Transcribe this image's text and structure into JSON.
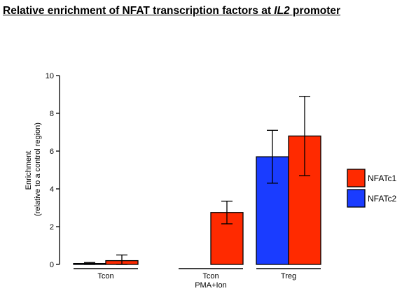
{
  "chart_data": {
    "type": "bar",
    "title_prefix": "Relative enrichment of NFAT transcription factors at ",
    "title_italic": "IL2",
    "title_suffix": " promoter",
    "ylabel_line1": "Enrichment",
    "ylabel_line2": "(relative to a control region)",
    "ylim": [
      0,
      10
    ],
    "yticks": [
      "0",
      "2",
      "4",
      "6",
      "8",
      "10"
    ],
    "categories": [
      {
        "line1": "Tcon",
        "line2": ""
      },
      {
        "line1": "Tcon",
        "line2": "PMA+Ion"
      },
      {
        "line1": "Treg",
        "line2": ""
      }
    ],
    "series": [
      {
        "name": "NFATc2",
        "color": "#1a3cff",
        "values": [
          0.05,
          null,
          5.7
        ],
        "errors": [
          0.05,
          null,
          1.4
        ]
      },
      {
        "name": "NFATc1",
        "color": "#ff2a00",
        "values": [
          0.2,
          2.75,
          6.8
        ],
        "errors": [
          0.3,
          0.6,
          2.1
        ]
      }
    ],
    "legend": [
      {
        "name": "NFATc1",
        "color": "#ff2a00"
      },
      {
        "name": "NFATc2",
        "color": "#1a3cff"
      }
    ],
    "legend_position": "right"
  }
}
